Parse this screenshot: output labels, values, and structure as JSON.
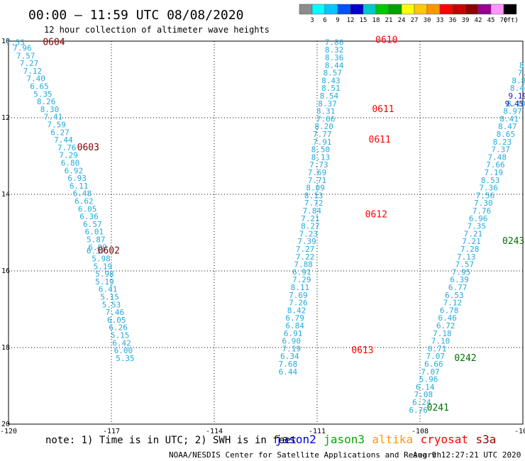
{
  "header": {
    "title": "00:00 – 11:59 UTC 08/08/2020",
    "subtitle": "12 hour collection of altimeter wave heights"
  },
  "colorbar": {
    "labels": [
      "3",
      "6",
      "9",
      "12",
      "15",
      "18",
      "21",
      "24",
      "27",
      "30",
      "33",
      "36",
      "39",
      "42",
      "45",
      "70"
    ],
    "unit": "(ft)",
    "colors": [
      "#8c8c8c",
      "#00ffff",
      "#00c8ff",
      "#0050ff",
      "#0000c8",
      "#00c8c8",
      "#00c800",
      "#00a000",
      "#ffff00",
      "#ffc800",
      "#ff9600",
      "#ff0000",
      "#c80000",
      "#8c0000",
      "#960096",
      "#ff96ff",
      "#000000"
    ]
  },
  "chart_data": {
    "type": "scatter",
    "x_ticks": [
      "-120",
      "-117",
      "-114",
      "-111",
      "-108",
      "-105"
    ],
    "y_ticks": [
      "10",
      "12",
      "14",
      "16",
      "18",
      "20"
    ],
    "xlim": [
      -120,
      -105
    ],
    "ylim": [
      10,
      20
    ],
    "grid": true,
    "series": [
      {
        "satellite": "jason3",
        "color": "#22aadd",
        "points": [
          {
            "lon": -119.8,
            "lat": 10.1,
            "v": "7.53"
          },
          {
            "lon": -119.6,
            "lat": 10.25,
            "v": "7.96"
          },
          {
            "lon": -119.5,
            "lat": 10.45,
            "v": "7.57"
          },
          {
            "lon": -119.4,
            "lat": 10.65,
            "v": "7.27"
          },
          {
            "lon": -119.3,
            "lat": 10.85,
            "v": "7.12"
          },
          {
            "lon": -119.2,
            "lat": 11.05,
            "v": "7.40"
          },
          {
            "lon": -119.1,
            "lat": 11.25,
            "v": "6.65"
          },
          {
            "lon": -119.0,
            "lat": 11.45,
            "v": "5.35"
          },
          {
            "lon": -118.9,
            "lat": 11.65,
            "v": "8.26"
          },
          {
            "lon": -118.8,
            "lat": 11.85,
            "v": "8.30"
          },
          {
            "lon": -118.7,
            "lat": 12.05,
            "v": "7.41"
          },
          {
            "lon": -118.6,
            "lat": 12.25,
            "v": "7.59"
          },
          {
            "lon": -118.5,
            "lat": 12.45,
            "v": "6.27"
          },
          {
            "lon": -118.4,
            "lat": 12.65,
            "v": "7.44"
          },
          {
            "lon": -118.3,
            "lat": 12.85,
            "v": "7.76"
          },
          {
            "lon": -118.25,
            "lat": 13.05,
            "v": "7.29"
          },
          {
            "lon": -118.2,
            "lat": 13.25,
            "v": "6.80"
          },
          {
            "lon": -118.1,
            "lat": 13.45,
            "v": "6.92"
          },
          {
            "lon": -118.0,
            "lat": 13.65,
            "v": "6.93"
          },
          {
            "lon": -117.95,
            "lat": 13.85,
            "v": "6.11"
          },
          {
            "lon": -117.85,
            "lat": 14.05,
            "v": "6.48"
          },
          {
            "lon": -117.8,
            "lat": 14.25,
            "v": "6.62"
          },
          {
            "lon": -117.7,
            "lat": 14.45,
            "v": "6.05"
          },
          {
            "lon": -117.65,
            "lat": 14.65,
            "v": "6.36"
          },
          {
            "lon": -117.55,
            "lat": 14.85,
            "v": "6.57"
          },
          {
            "lon": -117.5,
            "lat": 15.05,
            "v": "6.01"
          },
          {
            "lon": -117.45,
            "lat": 15.25,
            "v": "5.87"
          },
          {
            "lon": -117.4,
            "lat": 15.45,
            "v": "6.09"
          },
          {
            "lon": -117.45,
            "lat": 15.55,
            "v": "6.37"
          },
          {
            "lon": -117.3,
            "lat": 15.75,
            "v": "5.98"
          },
          {
            "lon": -117.25,
            "lat": 15.95,
            "v": "5.19"
          },
          {
            "lon": -117.2,
            "lat": 16.15,
            "v": "5.98"
          },
          {
            "lon": -117.2,
            "lat": 16.35,
            "v": "5.19"
          },
          {
            "lon": -117.1,
            "lat": 16.55,
            "v": "6.41"
          },
          {
            "lon": -117.05,
            "lat": 16.75,
            "v": "5.15"
          },
          {
            "lon": -117.0,
            "lat": 16.95,
            "v": "5.53"
          },
          {
            "lon": -116.9,
            "lat": 17.15,
            "v": "7.46"
          },
          {
            "lon": -116.85,
            "lat": 17.35,
            "v": "6.05"
          },
          {
            "lon": -116.8,
            "lat": 17.55,
            "v": "6.26"
          },
          {
            "lon": -116.75,
            "lat": 17.75,
            "v": "5.15"
          },
          {
            "lon": -116.7,
            "lat": 17.95,
            "v": "6.42"
          },
          {
            "lon": -116.65,
            "lat": 18.15,
            "v": "6.00"
          },
          {
            "lon": -116.6,
            "lat": 18.35,
            "v": "5.35"
          }
        ]
      },
      {
        "satellite": "jason3",
        "color": "#22aadd",
        "points": [
          {
            "lon": -110.5,
            "lat": 10.1,
            "v": "7.86"
          },
          {
            "lon": -110.5,
            "lat": 10.3,
            "v": "8.32"
          },
          {
            "lon": -110.5,
            "lat": 10.5,
            "v": "8.36"
          },
          {
            "lon": -110.5,
            "lat": 10.7,
            "v": "8.44"
          },
          {
            "lon": -110.55,
            "lat": 10.9,
            "v": "8.57"
          },
          {
            "lon": -110.6,
            "lat": 11.1,
            "v": "8.43"
          },
          {
            "lon": -110.6,
            "lat": 11.3,
            "v": "8.51"
          },
          {
            "lon": -110.65,
            "lat": 11.5,
            "v": "8.54"
          },
          {
            "lon": -110.7,
            "lat": 11.7,
            "v": "8.37"
          },
          {
            "lon": -110.75,
            "lat": 11.9,
            "v": "8.31"
          },
          {
            "lon": -110.75,
            "lat": 12.1,
            "v": "7.66"
          },
          {
            "lon": -110.8,
            "lat": 12.3,
            "v": "8.20"
          },
          {
            "lon": -110.85,
            "lat": 12.5,
            "v": "7.77"
          },
          {
            "lon": -110.85,
            "lat": 12.7,
            "v": "7.91"
          },
          {
            "lon": -110.9,
            "lat": 12.9,
            "v": "8.50"
          },
          {
            "lon": -110.9,
            "lat": 13.1,
            "v": "8.13"
          },
          {
            "lon": -110.95,
            "lat": 13.3,
            "v": "7.73"
          },
          {
            "lon": -111.0,
            "lat": 13.5,
            "v": "7.69"
          },
          {
            "lon": -111.0,
            "lat": 13.7,
            "v": "7.71"
          },
          {
            "lon": -111.05,
            "lat": 13.9,
            "v": "8.09"
          },
          {
            "lon": -111.1,
            "lat": 14.1,
            "v": "8.13"
          },
          {
            "lon": -111.1,
            "lat": 14.3,
            "v": "7.72"
          },
          {
            "lon": -111.15,
            "lat": 14.5,
            "v": "7.84"
          },
          {
            "lon": -111.2,
            "lat": 14.7,
            "v": "7.21"
          },
          {
            "lon": -111.2,
            "lat": 14.9,
            "v": "8.27"
          },
          {
            "lon": -111.25,
            "lat": 15.1,
            "v": "7.23"
          },
          {
            "lon": -111.3,
            "lat": 15.3,
            "v": "7.39"
          },
          {
            "lon": -111.35,
            "lat": 15.5,
            "v": "7.27"
          },
          {
            "lon": -111.35,
            "lat": 15.7,
            "v": "7.22"
          },
          {
            "lon": -111.4,
            "lat": 15.9,
            "v": "7.88"
          },
          {
            "lon": -111.45,
            "lat": 16.1,
            "v": "6.91"
          },
          {
            "lon": -111.45,
            "lat": 16.3,
            "v": "7.29"
          },
          {
            "lon": -111.5,
            "lat": 16.5,
            "v": "8.11"
          },
          {
            "lon": -111.55,
            "lat": 16.7,
            "v": "7.69"
          },
          {
            "lon": -111.55,
            "lat": 16.9,
            "v": "7.26"
          },
          {
            "lon": -111.6,
            "lat": 17.1,
            "v": "8.42"
          },
          {
            "lon": -111.65,
            "lat": 17.3,
            "v": "6.79"
          },
          {
            "lon": -111.65,
            "lat": 17.5,
            "v": "6.84"
          },
          {
            "lon": -111.7,
            "lat": 17.7,
            "v": "6.91"
          },
          {
            "lon": -111.75,
            "lat": 17.9,
            "v": "6.90"
          },
          {
            "lon": -111.75,
            "lat": 18.1,
            "v": "7.19"
          },
          {
            "lon": -111.8,
            "lat": 18.3,
            "v": "6.34"
          },
          {
            "lon": -111.85,
            "lat": 18.5,
            "v": "7.68"
          },
          {
            "lon": -111.85,
            "lat": 18.7,
            "v": "6.44"
          }
        ]
      },
      {
        "satellite": "jason3",
        "color": "#22aadd",
        "points": [
          {
            "lon": -104.9,
            "lat": 10.7,
            "v": "8.5"
          },
          {
            "lon": -104.95,
            "lat": 10.9,
            "v": "7.7"
          },
          {
            "lon": -105.05,
            "lat": 11.1,
            "v": "8.81"
          },
          {
            "lon": -105.1,
            "lat": 11.3,
            "v": "8.46"
          },
          {
            "lon": -105.2,
            "lat": 11.7,
            "v": "8.10"
          },
          {
            "lon": -105.3,
            "lat": 11.9,
            "v": "8.97"
          },
          {
            "lon": -105.4,
            "lat": 12.1,
            "v": "8.41"
          },
          {
            "lon": -105.45,
            "lat": 12.3,
            "v": "8.47"
          },
          {
            "lon": -105.5,
            "lat": 12.5,
            "v": "8.65"
          },
          {
            "lon": -105.6,
            "lat": 12.7,
            "v": "8.23"
          },
          {
            "lon": -105.65,
            "lat": 12.9,
            "v": "7.37"
          },
          {
            "lon": -105.75,
            "lat": 13.1,
            "v": "7.48"
          },
          {
            "lon": -105.8,
            "lat": 13.3,
            "v": "7.66"
          },
          {
            "lon": -105.85,
            "lat": 13.5,
            "v": "7.19"
          },
          {
            "lon": -105.95,
            "lat": 13.7,
            "v": "8.53"
          },
          {
            "lon": -106.0,
            "lat": 13.9,
            "v": "7.36"
          },
          {
            "lon": -106.1,
            "lat": 14.1,
            "v": "7.56"
          },
          {
            "lon": -106.15,
            "lat": 14.3,
            "v": "7.30"
          },
          {
            "lon": -106.2,
            "lat": 14.5,
            "v": "7.76"
          },
          {
            "lon": -106.3,
            "lat": 14.7,
            "v": "6.96"
          },
          {
            "lon": -106.35,
            "lat": 14.9,
            "v": "7.35"
          },
          {
            "lon": -106.45,
            "lat": 15.1,
            "v": "7.21"
          },
          {
            "lon": -106.5,
            "lat": 15.3,
            "v": "7.21"
          },
          {
            "lon": -106.55,
            "lat": 15.5,
            "v": "7.28"
          },
          {
            "lon": -106.65,
            "lat": 15.7,
            "v": "7.13"
          },
          {
            "lon": -106.7,
            "lat": 15.9,
            "v": "7.57"
          },
          {
            "lon": -106.8,
            "lat": 16.1,
            "v": "7.95"
          },
          {
            "lon": -106.85,
            "lat": 16.3,
            "v": "6.39"
          },
          {
            "lon": -106.9,
            "lat": 16.5,
            "v": "6.77"
          },
          {
            "lon": -107.0,
            "lat": 16.7,
            "v": "6.53"
          },
          {
            "lon": -107.05,
            "lat": 16.9,
            "v": "7.12"
          },
          {
            "lon": -107.15,
            "lat": 17.1,
            "v": "6.78"
          },
          {
            "lon": -107.2,
            "lat": 17.3,
            "v": "6.46"
          },
          {
            "lon": -107.25,
            "lat": 17.5,
            "v": "6.72"
          },
          {
            "lon": -107.35,
            "lat": 17.7,
            "v": "7.18"
          },
          {
            "lon": -107.4,
            "lat": 17.9,
            "v": "7.10"
          },
          {
            "lon": -107.5,
            "lat": 18.1,
            "v": "6.71"
          },
          {
            "lon": -107.55,
            "lat": 18.3,
            "v": "7.07"
          },
          {
            "lon": -107.6,
            "lat": 18.5,
            "v": "6.66"
          },
          {
            "lon": -107.7,
            "lat": 18.7,
            "v": "7.07"
          },
          {
            "lon": -107.75,
            "lat": 18.9,
            "v": "5.96"
          },
          {
            "lon": -107.85,
            "lat": 19.1,
            "v": "6.14"
          },
          {
            "lon": -107.9,
            "lat": 19.3,
            "v": "7.08"
          },
          {
            "lon": -107.95,
            "lat": 19.5,
            "v": "6.24"
          },
          {
            "lon": -108.05,
            "lat": 19.7,
            "v": "6.76"
          }
        ]
      },
      {
        "satellite": "jason2",
        "color": "#1a1ab4",
        "points": [
          {
            "lon": -105.15,
            "lat": 11.5,
            "v": "9.19"
          },
          {
            "lon": -105.25,
            "lat": 11.7,
            "v": "9.45"
          }
        ]
      }
    ],
    "time_labels": [
      {
        "lon": -119.0,
        "lat": 10.1,
        "v": "0604",
        "color": "#800000"
      },
      {
        "lon": -117.4,
        "lat": 15.55,
        "v": "0602",
        "color": "#800000"
      },
      {
        "lon": -118.0,
        "lat": 12.85,
        "v": "0603",
        "color": "#800000"
      },
      {
        "lon": -109.3,
        "lat": 10.05,
        "v": "0610",
        "color": "#ff0000"
      },
      {
        "lon": -109.4,
        "lat": 11.85,
        "v": "0611",
        "color": "#ff0000"
      },
      {
        "lon": -109.5,
        "lat": 12.65,
        "v": "0611",
        "color": "#ff0000"
      },
      {
        "lon": -109.6,
        "lat": 14.6,
        "v": "0612",
        "color": "#ff0000"
      },
      {
        "lon": -110.0,
        "lat": 18.15,
        "v": "0613",
        "color": "#ff0000"
      },
      {
        "lon": -104.9,
        "lat": 12.1,
        "v": "02",
        "color": "#007000"
      },
      {
        "lon": -105.6,
        "lat": 15.3,
        "v": "0243",
        "color": "#007000"
      },
      {
        "lon": -107.0,
        "lat": 18.35,
        "v": "0242",
        "color": "#007000"
      },
      {
        "lon": -107.8,
        "lat": 19.65,
        "v": "0241",
        "color": "#007000"
      }
    ]
  },
  "legend": {
    "note": "note: 1) Time is in UTC; 2) SWH is in feet",
    "items": [
      {
        "label": "jason2",
        "color": "#0000dd"
      },
      {
        "label": "jason3",
        "color": "#00aa00"
      },
      {
        "label": "altika",
        "color": "#ff9900"
      },
      {
        "label": "cryosat",
        "color": "#ff0000"
      },
      {
        "label": "s3a",
        "color": "#990000"
      }
    ]
  },
  "footer": {
    "credit": "NOAA/NESDIS Center for Satellite Applications and Research",
    "timestamp": "Aug  9 12:27:21 UTC 2020"
  }
}
